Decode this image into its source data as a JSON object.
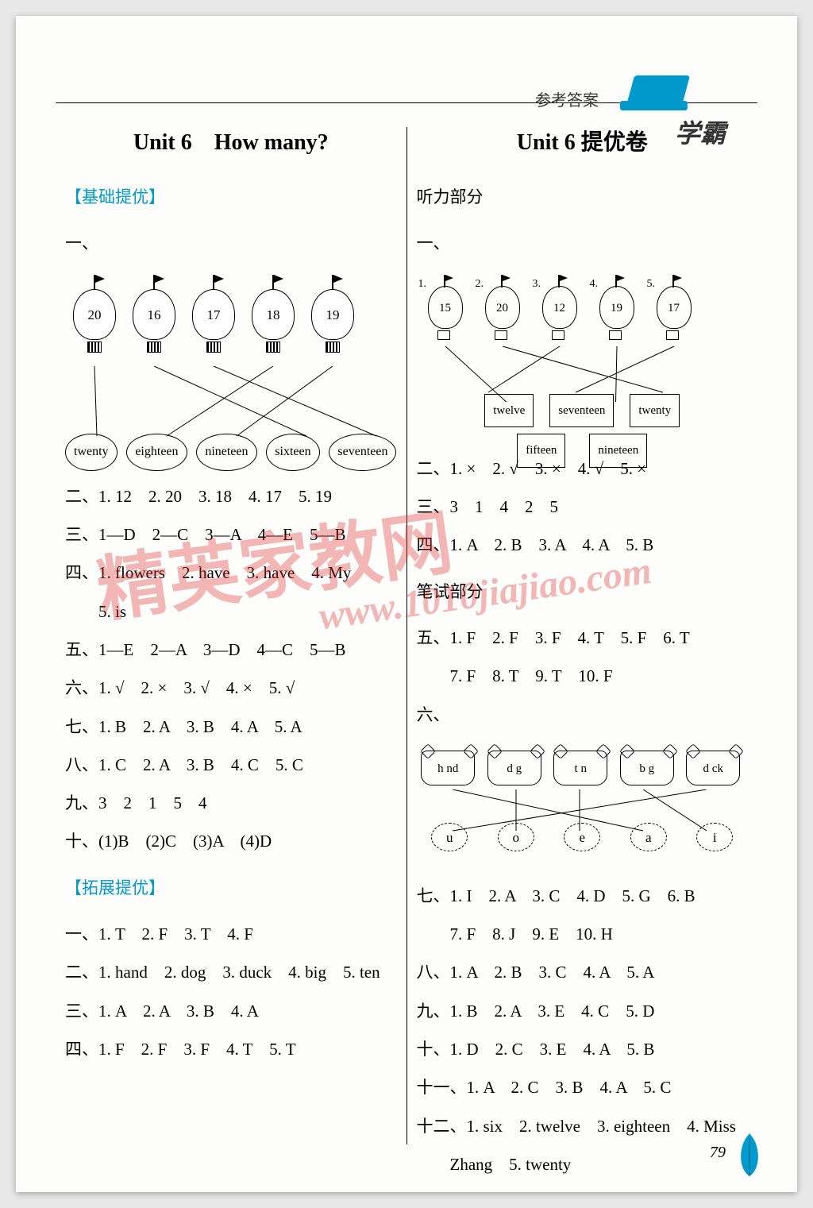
{
  "header": {
    "label": "参考答案",
    "logo": "学霸"
  },
  "left": {
    "title": "Unit 6　How many?",
    "section1": "【基础提优】",
    "q1": "一、",
    "diagram1": {
      "balloons": [
        "20",
        "16",
        "17",
        "18",
        "19"
      ],
      "words": [
        "twenty",
        "eighteen",
        "nineteen",
        "sixteen",
        "seventeen"
      ],
      "lines": [
        [
          0,
          0
        ],
        [
          1,
          3
        ],
        [
          2,
          4
        ],
        [
          3,
          1
        ],
        [
          4,
          2
        ]
      ]
    },
    "q2": "二、1. 12　2. 20　3. 18　4. 17　5. 19",
    "q3": "三、1—D　2—C　3—A　4—E　5—B",
    "q4a": "四、1. flowers　2. have　3. have　4. My",
    "q4b": "　　5. is",
    "q5": "五、1—E　2—A　3—D　4—C　5—B",
    "q6": "六、1. √　2. ×　3. √　4. ×　5. √",
    "q7": "七、1. B　2. A　3. B　4. A　5. A",
    "q8": "八、1. C　2. A　3. B　4. C　5. C",
    "q9": "九、3　2　1　5　4",
    "q10": "十、(1)B　(2)C　(3)A　(4)D",
    "section2": "【拓展提优】",
    "e1": "一、1. T　2. F　3. T　4. F",
    "e2": "二、1. hand　2. dog　3. duck　4. big　5. ten",
    "e3": "三、1. A　2. A　3. B　4. A",
    "e4": "四、1. F　2. F　3. F　4. T　5. T"
  },
  "right": {
    "title": "Unit 6 提优卷",
    "section1": "听力部分",
    "q1": "一、",
    "diagram1": {
      "nums": [
        "1.",
        "2.",
        "3.",
        "4.",
        "5."
      ],
      "balloons": [
        "15",
        "20",
        "12",
        "19",
        "17"
      ],
      "row1": [
        "twelve",
        "seventeen",
        "twenty"
      ],
      "row2": [
        "fifteen",
        "nineteen"
      ],
      "lines_r1": [
        [
          2,
          0
        ],
        [
          4,
          1
        ],
        [
          1,
          2
        ]
      ],
      "lines_r2": [
        [
          0,
          0
        ],
        [
          3,
          1
        ]
      ]
    },
    "q2": "二、1. ×　2. √　3. ×　4. √　5. ×",
    "q3": "三、3　1　4　2　5",
    "q4": "四、1. A　2. B　3. A　4. A　5. B",
    "section2": "笔试部分",
    "q5": "五、1. F　2. F　3. F　4. T　5. F　6. T",
    "q5b": "　　7. F　8. T　9. T　10. F",
    "q6": "六、",
    "diagram2": {
      "tags": [
        "h  nd",
        "d  g",
        "t  n",
        "b  g",
        "d  ck"
      ],
      "vowels": [
        "u",
        "o",
        "e",
        "a",
        "i"
      ],
      "lines": [
        [
          0,
          3
        ],
        [
          1,
          1
        ],
        [
          2,
          2
        ],
        [
          3,
          4
        ],
        [
          4,
          0
        ]
      ]
    },
    "q7": "七、1. I　2. A　3. C　4. D　5. G　6. B",
    "q7b": "　　7. F　8. J　9. E　10. H",
    "q8": "八、1. A　2. B　3. C　4. A　5. A",
    "q9": "九、1. B　2. A　3. E　4. C　5. D",
    "q10": "十、1. D　2. C　3. E　4. A　5. B",
    "q11": "十一、1. A　2. C　3. B　4. A　5. C",
    "q12a": "十二、1. six　2. twelve　3. eighteen　4. Miss",
    "q12b": "　　Zhang　5. twenty"
  },
  "watermark1": "精英家教网",
  "watermark2": "www.1010jiajiao.com",
  "page_number": "79"
}
